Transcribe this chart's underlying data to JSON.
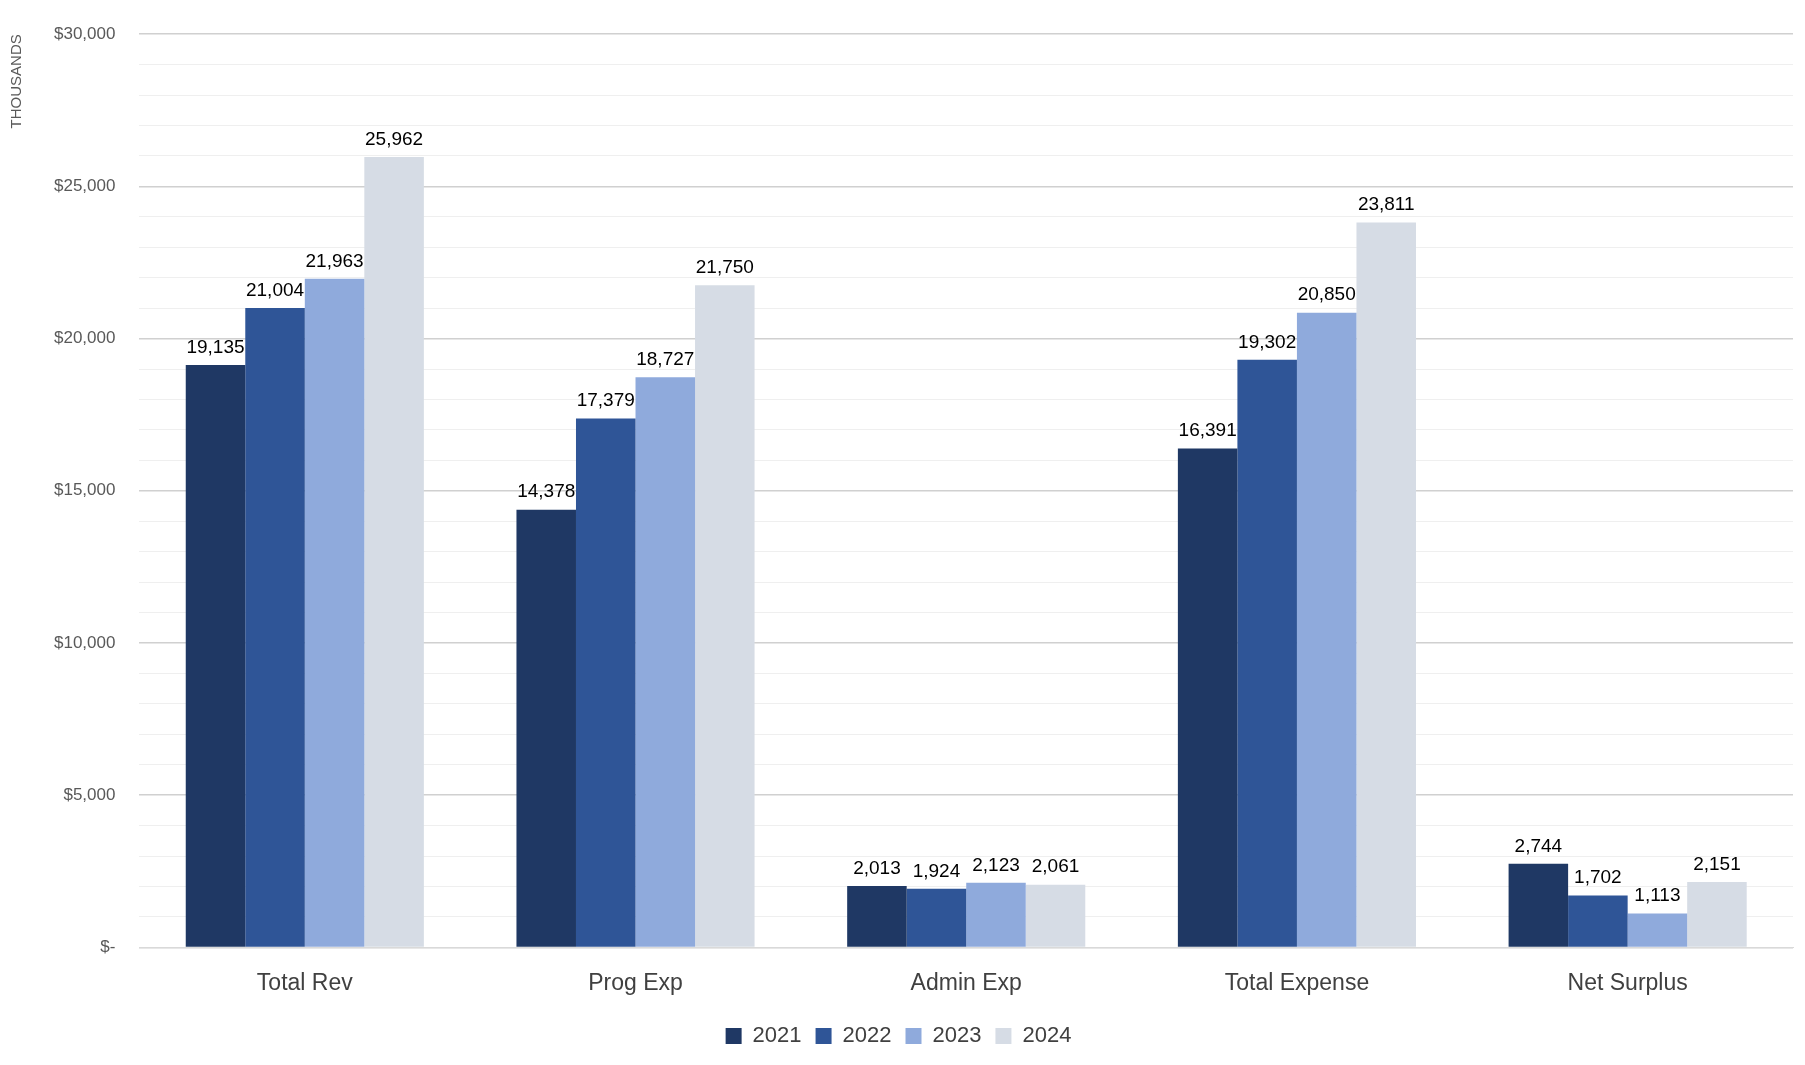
{
  "chart_data": {
    "type": "bar",
    "ylabel": "THOUSANDS",
    "categories": [
      "Total Rev",
      "Prog Exp",
      "Admin Exp",
      "Total Expense",
      "Net Surplus"
    ],
    "series": [
      {
        "name": "2021",
        "color": "#1f3864",
        "values": [
          19135,
          14378,
          2013,
          16391,
          2744
        ],
        "value_labels": [
          "19,135",
          "14,378",
          "2,013",
          "16,391",
          "2,744"
        ]
      },
      {
        "name": "2022",
        "color": "#2f5597",
        "values": [
          21004,
          17379,
          1924,
          19302,
          1702
        ],
        "value_labels": [
          "21,004",
          "17,379",
          "1,924",
          "19,302",
          "1,702"
        ]
      },
      {
        "name": "2023",
        "color": "#8faadc",
        "values": [
          21963,
          18727,
          2123,
          20850,
          1113
        ],
        "value_labels": [
          "21,963",
          "18,727",
          "2,123",
          "20,850",
          "1,113"
        ]
      },
      {
        "name": "2024",
        "color": "#d6dce5",
        "values": [
          25962,
          21750,
          2061,
          23811,
          2151
        ],
        "value_labels": [
          "25,962",
          "21,750",
          "2,061",
          "23,811",
          "2,151"
        ]
      }
    ],
    "ylim": [
      0,
      30000
    ],
    "yticks": [
      {
        "value": 0,
        "label": "$-"
      },
      {
        "value": 1000,
        "label": null
      },
      {
        "value": 2000,
        "label": null
      },
      {
        "value": 3000,
        "label": null
      },
      {
        "value": 4000,
        "label": null
      },
      {
        "value": 5000,
        "label": "$5,000"
      },
      {
        "value": 6000,
        "label": null
      },
      {
        "value": 7000,
        "label": null
      },
      {
        "value": 8000,
        "label": null
      },
      {
        "value": 9000,
        "label": null
      },
      {
        "value": 10000,
        "label": "$10,000"
      },
      {
        "value": 11000,
        "label": null
      },
      {
        "value": 12000,
        "label": null
      },
      {
        "value": 13000,
        "label": null
      },
      {
        "value": 14000,
        "label": null
      },
      {
        "value": 15000,
        "label": "$15,000"
      },
      {
        "value": 16000,
        "label": null
      },
      {
        "value": 17000,
        "label": null
      },
      {
        "value": 18000,
        "label": null
      },
      {
        "value": 19000,
        "label": null
      },
      {
        "value": 20000,
        "label": "$20,000"
      },
      {
        "value": 21000,
        "label": null
      },
      {
        "value": 22000,
        "label": null
      },
      {
        "value": 23000,
        "label": null
      },
      {
        "value": 24000,
        "label": null
      },
      {
        "value": 25000,
        "label": "$25,000"
      },
      {
        "value": 26000,
        "label": null
      },
      {
        "value": 27000,
        "label": null
      },
      {
        "value": 28000,
        "label": null
      },
      {
        "value": 29000,
        "label": null
      },
      {
        "value": 30000,
        "label": "$30,000"
      }
    ],
    "grid": "y",
    "legend": "bottom"
  }
}
